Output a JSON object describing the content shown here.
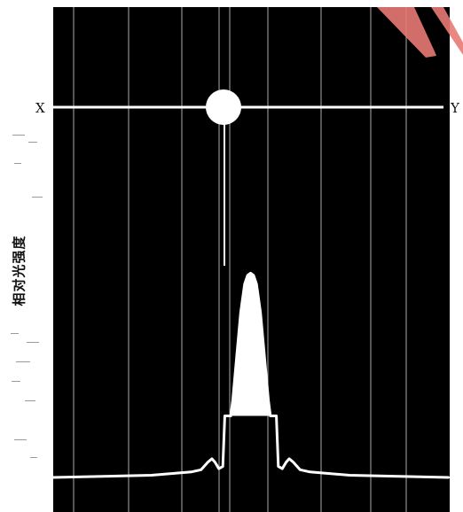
{
  "colors": {
    "panel_background": "#000000",
    "trace": "#ffffff",
    "grid": "#d8d8d8",
    "page": "#ffffff",
    "corner_mark": "#e87a74"
  },
  "chart_data": {
    "type": "line",
    "title": "",
    "xlabel": "",
    "ylabel": "相对光强度",
    "x_end_labels": {
      "left": "X",
      "right": "Y"
    },
    "grid": true,
    "xlim": [
      -1,
      1
    ],
    "ylim": [
      0,
      1
    ],
    "aperture_marker": {
      "shape": "circle",
      "x": 0.0
    },
    "series": [
      {
        "x": [
          -1.0,
          -0.5,
          -0.3,
          -0.25,
          -0.215,
          -0.195,
          -0.18,
          -0.16,
          -0.14,
          -0.13,
          -0.12,
          -0.1,
          -0.09,
          -0.07,
          -0.05,
          -0.03,
          -0.015,
          0.0,
          0.015,
          0.03,
          0.05,
          0.07,
          0.09,
          0.1,
          0.12,
          0.13,
          0.14,
          0.16,
          0.18,
          0.195,
          0.215,
          0.25,
          0.3,
          0.5,
          1.0
        ],
        "y": [
          0.0,
          0.01,
          0.025,
          0.035,
          0.07,
          0.085,
          0.07,
          0.04,
          0.05,
          0.28,
          0.28,
          0.28,
          0.35,
          0.55,
          0.75,
          0.88,
          0.92,
          0.93,
          0.92,
          0.88,
          0.75,
          0.55,
          0.35,
          0.28,
          0.28,
          0.28,
          0.05,
          0.04,
          0.07,
          0.085,
          0.07,
          0.035,
          0.025,
          0.01,
          0.0
        ]
      }
    ]
  }
}
